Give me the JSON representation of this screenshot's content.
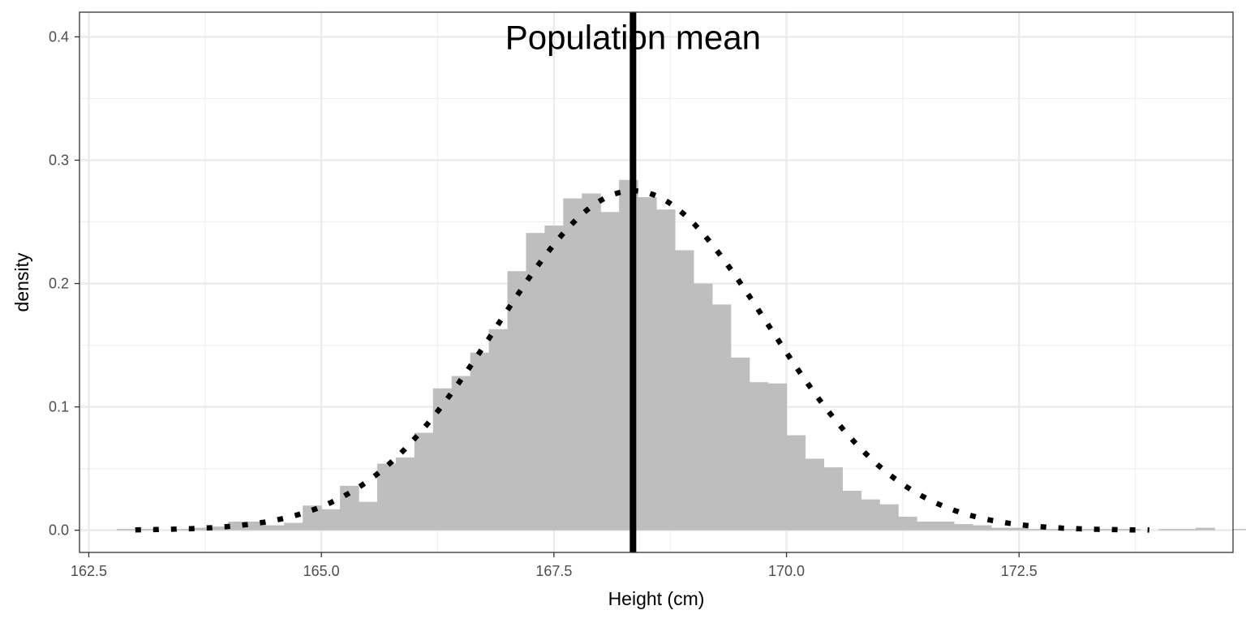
{
  "chart_data": {
    "type": "bar",
    "xlabel": "Height (cm)",
    "ylabel": "density",
    "xlim": [
      162.4,
      174.8
    ],
    "ylim": [
      -0.018,
      0.42
    ],
    "x_ticks": [
      162.5,
      165.0,
      167.5,
      170.0,
      172.5
    ],
    "x_tick_labels": [
      "162.5",
      "165.0",
      "167.5",
      "170.0",
      "172.5"
    ],
    "y_ticks": [
      0.0,
      0.1,
      0.2,
      0.3,
      0.4
    ],
    "y_tick_labels": [
      "0.0",
      "0.1",
      "0.2",
      "0.3",
      "0.4"
    ],
    "grid": true,
    "histogram": {
      "bin_width": 0.2,
      "start": 162.8,
      "color": "#bebebe",
      "densities": [
        0.001,
        0.001,
        0.0,
        0.001,
        0.002,
        0.003,
        0.007,
        0.007,
        0.004,
        0.006,
        0.02,
        0.017,
        0.036,
        0.023,
        0.054,
        0.059,
        0.079,
        0.115,
        0.125,
        0.144,
        0.163,
        0.21,
        0.241,
        0.247,
        0.269,
        0.273,
        0.258,
        0.284,
        0.27,
        0.26,
        0.227,
        0.2,
        0.183,
        0.14,
        0.12,
        0.119,
        0.077,
        0.058,
        0.051,
        0.032,
        0.025,
        0.021,
        0.011,
        0.007,
        0.007,
        0.005,
        0.004,
        0.002,
        0.002,
        0.001,
        0.001,
        0.001,
        0.001,
        0.001,
        0.001,
        0.0,
        0.001,
        0.001,
        0.002,
        0.0,
        0.001
      ]
    },
    "normal_curve": {
      "mean": 168.35,
      "sd": 1.45,
      "style": "dotted",
      "x_start": 163.0,
      "x_end": 173.9,
      "color": "#000000"
    },
    "vline": {
      "x": 168.35,
      "color": "#000000"
    },
    "annotations": [
      {
        "text": "Population mean",
        "x": 168.35,
        "y": 0.4
      }
    ]
  }
}
